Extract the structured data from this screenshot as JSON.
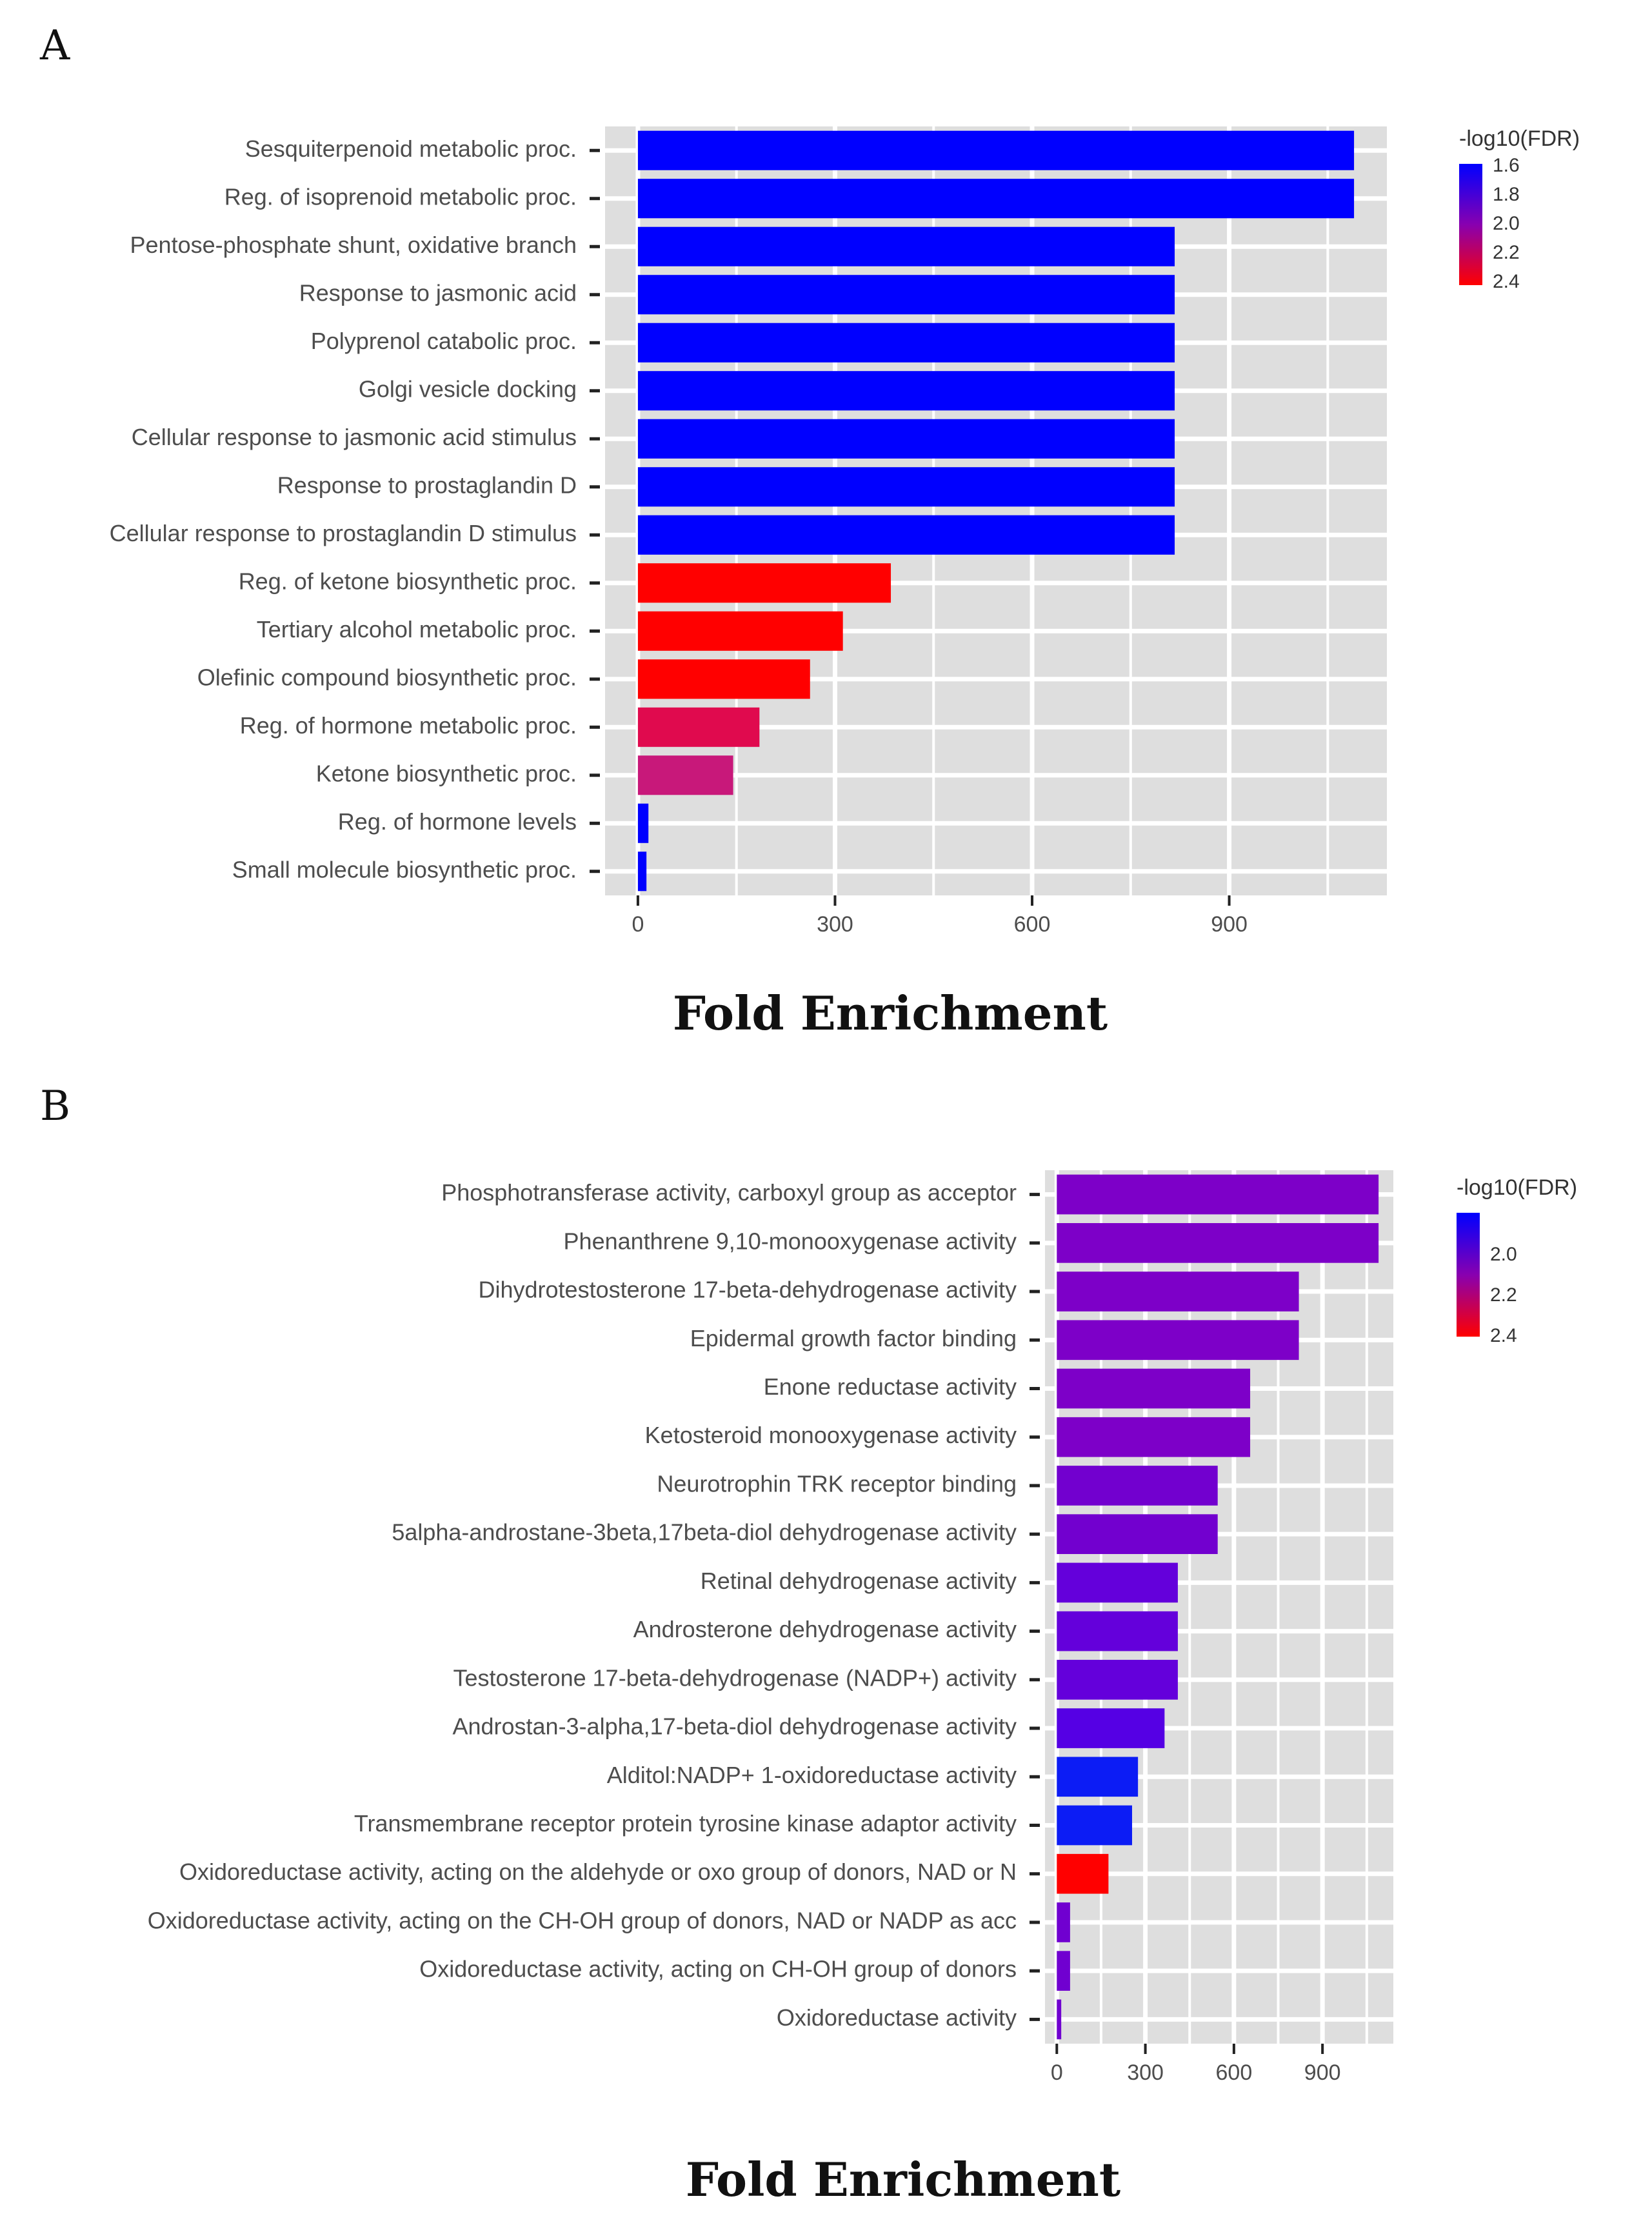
{
  "chart_data": [
    {
      "panel": "A",
      "type": "bar",
      "orientation": "horizontal",
      "xlabel": "Fold Enrichment",
      "ylabel": "",
      "xlim": [
        -50,
        1140
      ],
      "xticks": [
        0,
        300,
        600,
        900
      ],
      "grid": true,
      "legend": {
        "title": "-log10(FDR)",
        "ticks": [
          "1.6",
          "1.8",
          "2.0",
          "2.2",
          "2.4"
        ],
        "low_color": "#0000ff",
        "high_color": "#ff0000",
        "placement": "right"
      },
      "categories": [
        "Sesquiterpenoid metabolic proc.",
        "Reg. of isoprenoid metabolic proc.",
        "Pentose-phosphate shunt, oxidative branch",
        "Response to jasmonic acid",
        "Polyprenol catabolic proc.",
        "Golgi vesicle docking",
        "Cellular response to jasmonic acid stimulus",
        "Response to prostaglandin D",
        "Cellular response to prostaglandin D stimulus",
        "Reg. of ketone biosynthetic proc.",
        "Tertiary alcohol metabolic proc.",
        "Olefinic compound biosynthetic proc.",
        "Reg. of hormone metabolic proc.",
        "Ketone biosynthetic proc.",
        "Reg. of hormone levels",
        "Small molecule biosynthetic proc."
      ],
      "values": [
        1090,
        1090,
        817,
        817,
        817,
        817,
        817,
        817,
        817,
        385,
        312,
        262,
        185,
        145,
        16,
        13
      ],
      "colors": [
        "#0000ff",
        "#0000ff",
        "#0000ff",
        "#0000ff",
        "#0000ff",
        "#0000ff",
        "#0000ff",
        "#0000ff",
        "#0000ff",
        "#ff0000",
        "#ff0000",
        "#ff0000",
        "#e00a4e",
        "#c8187a",
        "#0000ff",
        "#0000ff"
      ]
    },
    {
      "panel": "B",
      "type": "bar",
      "orientation": "horizontal",
      "xlabel": "Fold Enrichment",
      "ylabel": "",
      "xlim": [
        -40,
        1140
      ],
      "xticks": [
        0,
        300,
        600,
        900
      ],
      "grid": true,
      "legend": {
        "title": "-log10(FDR)",
        "ticks": [
          "2.0",
          "2.2",
          "2.4"
        ],
        "low_color": "#0000ff",
        "high_color": "#ff0000",
        "placement": "right"
      },
      "categories": [
        "Phosphotransferase activity, carboxyl group as acceptor",
        "Phenanthrene 9,10-monooxygenase activity",
        "Dihydrotestosterone 17-beta-dehydrogenase activity",
        "Epidermal growth factor binding",
        "Enone reductase activity",
        "Ketosteroid monooxygenase activity",
        "Neurotrophin TRK receptor binding",
        "5alpha-androstane-3beta,17beta-diol dehydrogenase activity",
        "Retinal dehydrogenase activity",
        "Androsterone dehydrogenase activity",
        "Testosterone 17-beta-dehydrogenase (NADP+) activity",
        "Androstan-3-alpha,17-beta-diol dehydrogenase activity",
        "Alditol:NADP+ 1-oxidoreductase activity",
        "Transmembrane receptor protein tyrosine kinase adaptor activity",
        "Oxidoreductase activity, acting on the aldehyde or oxo group of donors, NAD or N",
        "Oxidoreductase activity, acting on the CH-OH group of donors, NAD or NADP as acc",
        "Oxidoreductase activity, acting on CH-OH group of donors",
        "Oxidoreductase activity"
      ],
      "values": [
        1090,
        1090,
        820,
        820,
        655,
        655,
        545,
        545,
        410,
        410,
        410,
        365,
        275,
        255,
        175,
        45,
        45,
        15
      ],
      "colors": [
        "#7d00c8",
        "#7d00c8",
        "#7d00c8",
        "#7d00c8",
        "#7d00c8",
        "#7d00c8",
        "#7200cf",
        "#7200cf",
        "#6400db",
        "#6400db",
        "#6400db",
        "#5500e4",
        "#0c1cf5",
        "#0c1cf5",
        "#ff0000",
        "#7000d0",
        "#7000d0",
        "#7000d0"
      ]
    }
  ]
}
